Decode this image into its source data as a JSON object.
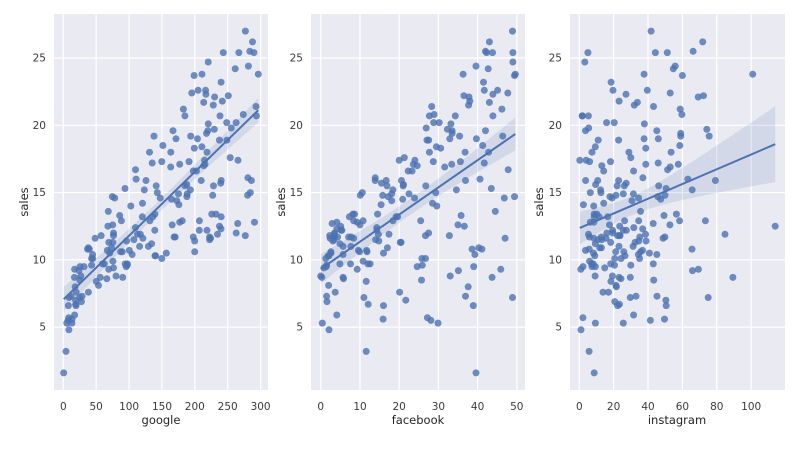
{
  "figure": {
    "background": "#ffffff",
    "axes_background": "#eaeaf2",
    "grid_color": "#ffffff",
    "text_color": "#3b3b3b",
    "accent_color": "#4c72b0",
    "point_color": "#4c72b0",
    "line_color": "#4c72b0",
    "band_color": "#4c72b0"
  },
  "chart_data": [
    {
      "type": "scatter",
      "title": "",
      "xlabel": "google",
      "ylabel": "sales",
      "x_key": "google",
      "y_key": "sales",
      "xticks": [
        0,
        50,
        100,
        150,
        200,
        250,
        300
      ],
      "yticks": [
        5,
        10,
        15,
        20,
        25
      ],
      "xlim": [
        -14.1,
        311.2
      ],
      "ylim": [
        0.33,
        28.27
      ],
      "grid": true,
      "legend": false,
      "regression": {
        "show_line": true,
        "ci_percent": 95
      }
    },
    {
      "type": "scatter",
      "title": "",
      "xlabel": "facebook",
      "ylabel": "sales",
      "x_key": "facebook",
      "y_key": "sales",
      "xticks": [
        0,
        10,
        20,
        30,
        40,
        50
      ],
      "yticks": [
        5,
        10,
        15,
        20,
        25
      ],
      "xlim": [
        -2.48,
        52.08
      ],
      "ylim": [
        0.33,
        28.27
      ],
      "grid": true,
      "legend": false,
      "regression": {
        "show_line": true,
        "ci_percent": 95
      }
    },
    {
      "type": "scatter",
      "title": "",
      "xlabel": "instagram",
      "ylabel": "sales",
      "x_key": "instagram",
      "y_key": "sales",
      "xticks": [
        0,
        20,
        40,
        60,
        80,
        100
      ],
      "yticks": [
        5,
        10,
        15,
        20,
        25
      ],
      "xlim": [
        -5.39,
        119.69
      ],
      "ylim": [
        0.33,
        28.27
      ],
      "grid": true,
      "legend": false,
      "regression": {
        "show_line": true,
        "ci_percent": 95
      }
    }
  ],
  "dataset": {
    "google": [
      230.1,
      44.5,
      17.2,
      151.5,
      180.8,
      8.7,
      57.5,
      120.2,
      8.6,
      199.8,
      66.1,
      214.7,
      23.8,
      97.5,
      204.1,
      195.4,
      67.8,
      281.4,
      69.2,
      147.3,
      218.4,
      237.4,
      13.2,
      228.3,
      62.3,
      262.9,
      142.9,
      240.1,
      248.8,
      70.6,
      292.9,
      112.9,
      97.2,
      265.6,
      95.7,
      290.7,
      266.9,
      74.7,
      43.1,
      228,
      202.5,
      177,
      293.6,
      206.9,
      25.1,
      175.1,
      89.7,
      239.9,
      227.2,
      66.9,
      199.8,
      100.4,
      216.4,
      182.6,
      262.7,
      198.9,
      7.3,
      136.2,
      210.8,
      210.7,
      53.5,
      261.3,
      239.3,
      102.7,
      131.1,
      69,
      31.5,
      139.3,
      237.4,
      216.8,
      199.1,
      109.8,
      26.8,
      129.4,
      213.4,
      16.9,
      27.5,
      120.5,
      5.4,
      116,
      76.4,
      239.8,
      75.3,
      68.4,
      213.5,
      193.2,
      76.3,
      110.7,
      88.3,
      109.8,
      134.3,
      28.6,
      217.7,
      250.9,
      107.4,
      163.3,
      197.6,
      184.9,
      289.7,
      135.2,
      222.4,
      296.4,
      280.2,
      187.9,
      238.2,
      137.9,
      25,
      90.4,
      13.1,
      255.4,
      225.8,
      241.7,
      175.7,
      209.6,
      78.2,
      75.1,
      139.2,
      76.4,
      125.7,
      19.4,
      141.3,
      18.8,
      224,
      123.1,
      229.5,
      87.2,
      7.8,
      80.2,
      220.3,
      59.6,
      0.7,
      265.2,
      8.4,
      219.8,
      36.9,
      48.3,
      25.6,
      273.7,
      43,
      184.9,
      73.4,
      193.7,
      220.5,
      104.6,
      96.2,
      140.3,
      240.1,
      243.2,
      38,
      44.7,
      280.7,
      121,
      197.6,
      171.3,
      187.8,
      4.1,
      93.9,
      149.8,
      11.7,
      131.7,
      172.5,
      85.7,
      188.4,
      163.5,
      117.2,
      234.5,
      17.9,
      206.8,
      215.4,
      284.3,
      50,
      164.5,
      19.6,
      168.4,
      222.4,
      276.9,
      248.4,
      170.2,
      276.7,
      165.6,
      156.6,
      218.5,
      56.2,
      287.6,
      253.8,
      205,
      139.5,
      191.1,
      286,
      18.7,
      39.5,
      75.5,
      17.2,
      166.8,
      149.7,
      38.2,
      94.2,
      177,
      283.6,
      232.1
    ],
    "facebook": [
      37.8,
      39.3,
      45.9,
      41.3,
      10.8,
      48.9,
      32.8,
      19.6,
      2.1,
      2.6,
      5.8,
      24,
      35.1,
      7.6,
      32.9,
      47.7,
      36.6,
      39.6,
      20.5,
      23.9,
      27.7,
      5.1,
      15.9,
      16.9,
      12.6,
      3.5,
      29.3,
      16.7,
      27.1,
      16,
      28.3,
      17.4,
      1.5,
      20,
      1.4,
      4.1,
      43.8,
      49.4,
      26.7,
      37.7,
      22.3,
      33.4,
      27.7,
      8.4,
      25.7,
      22.5,
      9.9,
      41.5,
      15.8,
      11.7,
      3.1,
      9.6,
      41.7,
      46.2,
      28.8,
      49.4,
      28.1,
      19.2,
      49.6,
      29.5,
      2,
      42.7,
      15.5,
      29.6,
      42.8,
      9.3,
      24.6,
      14.5,
      27.5,
      43.9,
      30.6,
      14.3,
      33,
      5.7,
      24.6,
      43.7,
      1.6,
      28.5,
      29.9,
      7.7,
      26.7,
      4.1,
      20.3,
      44.5,
      43,
      18.4,
      27.5,
      40.6,
      25.5,
      47.8,
      4.9,
      1.5,
      33.5,
      36.5,
      14,
      31.6,
      3.5,
      21,
      42.3,
      41.7,
      4.3,
      36.3,
      10.1,
      17.2,
      34.3,
      46.4,
      11,
      0.3,
      0.4,
      26.9,
      8.2,
      38,
      15.4,
      20.6,
      46.8,
      35,
      14.3,
      0.8,
      36.9,
      16,
      26.8,
      21.7,
      2.4,
      34.6,
      32.3,
      11.8,
      38.9,
      0,
      49,
      12,
      39.6,
      2.9,
      27.2,
      33.5,
      38.6,
      47,
      39,
      28.9,
      25.9,
      43.9,
      17,
      35.4,
      33.2,
      5.7,
      14.8,
      1.9,
      7.3,
      49,
      40.3,
      25.8,
      13.9,
      8.4,
      23.3,
      39.7,
      21.1,
      11.6,
      43.5,
      1.3,
      36.9,
      18.4,
      18.1,
      35.8,
      18.1,
      36.8,
      14.7,
      3.4,
      37.6,
      5.2,
      23.6,
      10.6,
      11.6,
      20.9,
      20.1,
      7.1,
      3.4,
      48.9,
      30.2,
      7.8,
      2.3,
      10,
      2.6,
      5.4,
      5.7,
      43,
      21.3,
      45.1,
      2.1,
      28.7,
      13.9,
      12.1,
      41.1,
      10.8,
      4.1,
      42,
      35.6,
      3.7,
      4.9,
      9.3,
      42,
      8.6
    ],
    "instagram": [
      69.2,
      45.1,
      69.3,
      58.5,
      58.4,
      75,
      23.5,
      11.6,
      1,
      21.2,
      24.2,
      4,
      65.9,
      7.2,
      46,
      52.9,
      114,
      55.8,
      18.3,
      19.1,
      53.4,
      23.5,
      49.6,
      26.2,
      18.3,
      19.5,
      12.6,
      22.9,
      22.9,
      40.8,
      43.2,
      38.6,
      30,
      0.3,
      7.4,
      8.5,
      5,
      45.7,
      35.1,
      32,
      31.6,
      38.7,
      1.8,
      26.4,
      43.3,
      31.5,
      35.7,
      18.5,
      49.9,
      36.8,
      34.6,
      3.6,
      39.6,
      58.7,
      15.9,
      60,
      41.4,
      16.6,
      37.7,
      9.3,
      21.4,
      54.7,
      27.3,
      8.4,
      28.9,
      0.9,
      2.2,
      10.2,
      11,
      27.2,
      38.7,
      31.7,
      19.3,
      31.3,
      13.1,
      89.4,
      20.7,
      14.2,
      9.4,
      23.1,
      22.3,
      36.9,
      32.5,
      35.6,
      33.8,
      65.7,
      16,
      63.2,
      73.4,
      51.4,
      9.3,
      33,
      59,
      72.3,
      10.9,
      52.9,
      5.9,
      22,
      51.2,
      45.9,
      49.8,
      100.9,
      21.4,
      17.9,
      5.3,
      59,
      29.7,
      23.2,
      25.6,
      5.5,
      56.5,
      23.2,
      2.4,
      10.7,
      34.5,
      52.7,
      25.6,
      14.8,
      79.2,
      22.3,
      46.2,
      50.4,
      15.6,
      12.4,
      74.2,
      25.9,
      50.6,
      9.2,
      3.2,
      43.1,
      8.7,
      43,
      2.1,
      45.1,
      65.6,
      8.5,
      9.3,
      59.7,
      20.5,
      1.7,
      12.9,
      75.6,
      37.9,
      34.4,
      38.9,
      9,
      8.7,
      44.3,
      11.9,
      20.6,
      37,
      48.7,
      14.2,
      37.7,
      9.5,
      5.7,
      50.5,
      24.3,
      45.2,
      34.6,
      30.7,
      49.3,
      25.6,
      7.4,
      5.4,
      84.8,
      21.6,
      19.4,
      57.6,
      6.4,
      18.4,
      47.4,
      17,
      12.8,
      13.1,
      41.8,
      20.3,
      35.2,
      23.7,
      17.6,
      8.3,
      27.4,
      29.7,
      71.8,
      30,
      19.6,
      26.6,
      18.2,
      3.7,
      23.4,
      5.8,
      6,
      31.6,
      3.6,
      6,
      13.8,
      8.1,
      6.4,
      66.2,
      8.7
    ],
    "sales": [
      22.1,
      10.4,
      9.3,
      18.5,
      12.9,
      7.2,
      11.8,
      13.2,
      4.8,
      10.6,
      8.6,
      17.4,
      9.2,
      9.7,
      19,
      22.4,
      12.5,
      24.4,
      11.3,
      14.6,
      18,
      12.5,
      5.6,
      15.5,
      9.7,
      12,
      15,
      15.9,
      18.9,
      10.5,
      21.4,
      11.9,
      9.6,
      17.4,
      9.5,
      12.8,
      25.4,
      14.7,
      10.1,
      21.5,
      16.6,
      17.1,
      20.7,
      12.9,
      8.5,
      14.9,
      10.6,
      23.2,
      14.8,
      10.7,
      11.4,
      10.7,
      22.6,
      21.2,
      20.2,
      23.7,
      5.5,
      13.2,
      23.8,
      18.4,
      8.1,
      24.2,
      15.7,
      14,
      18,
      9.3,
      9.5,
      13.4,
      18.9,
      22.3,
      18.3,
      12.4,
      8.8,
      11,
      17,
      8.7,
      6.9,
      14.2,
      5.3,
      11,
      11.8,
      12.3,
      11.3,
      13.6,
      21.7,
      15.2,
      12,
      16,
      12.9,
      16.7,
      11.2,
      7.3,
      19.4,
      22.2,
      11.5,
      16.9,
      11.7,
      15.5,
      25.4,
      17.2,
      11.7,
      23.8,
      14.8,
      14.7,
      20.7,
      19.2,
      7.2,
      8.7,
      5.3,
      19.8,
      13.4,
      21.8,
      14.1,
      15.9,
      14.6,
      12.6,
      12.2,
      9.4,
      15.9,
      6.6,
      15.5,
      7,
      11.6,
      15.2,
      19.7,
      10.6,
      6.6,
      8.8,
      24.7,
      9.7,
      1.6,
      12.7,
      5.7,
      19.6,
      10.8,
      11.6,
      9.5,
      20.8,
      9.6,
      20.7,
      10.9,
      19.2,
      20.1,
      10.4,
      11.4,
      10.3,
      13.2,
      25.4,
      10.9,
      10.1,
      16.1,
      11.6,
      16.6,
      19,
      15.6,
      3.2,
      15.3,
      10.1,
      7.3,
      12.9,
      14.4,
      13.3,
      14.9,
      18,
      11.9,
      11.9,
      8,
      12.2,
      17.1,
      15,
      8.4,
      14.5,
      7.6,
      11.7,
      11.5,
      27,
      20.2,
      11.7,
      11.8,
      12.6,
      10.5,
      12.2,
      8.7,
      26.2,
      17.6,
      22.6,
      10.3,
      17.3,
      15.9,
      6.7,
      10.8,
      9.9,
      5.9,
      19.6,
      17.3,
      7.6,
      9.7,
      12.8,
      25.5,
      13.4
    ]
  }
}
